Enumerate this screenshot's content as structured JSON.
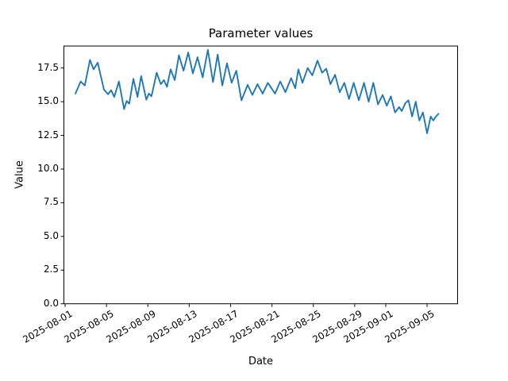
{
  "chart_data": {
    "type": "line",
    "title": "Parameter values",
    "xlabel": "Date",
    "ylabel": "Value",
    "grid": false,
    "legend": null,
    "line_color": "#1f77b4",
    "x_unit": "days since 2025-08-01",
    "xlim_days": [
      -0.12,
      37.95
    ],
    "ylim": [
      0,
      19.13
    ],
    "y_ticks": [
      {
        "value": 0,
        "label": "0.0"
      },
      {
        "value": 2.5,
        "label": "2.5"
      },
      {
        "value": 5,
        "label": "5.0"
      },
      {
        "value": 7.5,
        "label": "7.5"
      },
      {
        "value": 10,
        "label": "10.0"
      },
      {
        "value": 12.5,
        "label": "12.5"
      },
      {
        "value": 15,
        "label": "15.0"
      },
      {
        "value": 17.5,
        "label": "17.5"
      }
    ],
    "x_ticks": [
      {
        "day": 0,
        "label": "2025-08-01"
      },
      {
        "day": 4,
        "label": "2025-08-05"
      },
      {
        "day": 8,
        "label": "2025-08-09"
      },
      {
        "day": 12,
        "label": "2025-08-13"
      },
      {
        "day": 16,
        "label": "2025-08-17"
      },
      {
        "day": 20,
        "label": "2025-08-21"
      },
      {
        "day": 24,
        "label": "2025-08-25"
      },
      {
        "day": 28,
        "label": "2025-08-29"
      },
      {
        "day": 31,
        "label": "2025-09-01"
      },
      {
        "day": 35,
        "label": "2025-09-05"
      }
    ],
    "series": [
      {
        "name": "parameter-values",
        "points": [
          [
            1.0,
            15.6
          ],
          [
            1.5,
            16.5
          ],
          [
            1.9,
            16.2
          ],
          [
            2.4,
            18.1
          ],
          [
            2.75,
            17.4
          ],
          [
            3.15,
            17.9
          ],
          [
            3.75,
            15.9
          ],
          [
            4.15,
            15.55
          ],
          [
            4.45,
            15.85
          ],
          [
            4.75,
            15.35
          ],
          [
            5.2,
            16.5
          ],
          [
            5.7,
            14.45
          ],
          [
            5.95,
            15.05
          ],
          [
            6.2,
            14.85
          ],
          [
            6.6,
            16.7
          ],
          [
            7.0,
            15.35
          ],
          [
            7.35,
            16.9
          ],
          [
            7.85,
            15.15
          ],
          [
            8.1,
            15.6
          ],
          [
            8.35,
            15.4
          ],
          [
            8.85,
            17.15
          ],
          [
            9.25,
            16.3
          ],
          [
            9.55,
            16.6
          ],
          [
            9.85,
            16.1
          ],
          [
            10.2,
            17.4
          ],
          [
            10.6,
            16.6
          ],
          [
            11.0,
            18.45
          ],
          [
            11.45,
            17.3
          ],
          [
            11.9,
            18.65
          ],
          [
            12.35,
            17.1
          ],
          [
            12.8,
            18.3
          ],
          [
            13.3,
            16.8
          ],
          [
            13.8,
            18.85
          ],
          [
            14.3,
            16.45
          ],
          [
            14.75,
            18.5
          ],
          [
            15.2,
            16.2
          ],
          [
            15.65,
            17.85
          ],
          [
            16.1,
            16.4
          ],
          [
            16.55,
            17.3
          ],
          [
            17.05,
            15.1
          ],
          [
            17.65,
            16.25
          ],
          [
            18.1,
            15.5
          ],
          [
            18.6,
            16.3
          ],
          [
            19.1,
            15.6
          ],
          [
            19.6,
            16.4
          ],
          [
            20.3,
            15.6
          ],
          [
            20.8,
            16.5
          ],
          [
            21.3,
            15.7
          ],
          [
            21.85,
            16.75
          ],
          [
            22.25,
            16.0
          ],
          [
            22.55,
            17.4
          ],
          [
            22.95,
            16.4
          ],
          [
            23.45,
            17.5
          ],
          [
            23.9,
            16.95
          ],
          [
            24.4,
            18.05
          ],
          [
            24.85,
            17.15
          ],
          [
            25.25,
            17.45
          ],
          [
            25.65,
            16.3
          ],
          [
            26.1,
            17.0
          ],
          [
            26.55,
            15.7
          ],
          [
            27.0,
            16.4
          ],
          [
            27.45,
            15.2
          ],
          [
            27.9,
            16.4
          ],
          [
            28.4,
            15.1
          ],
          [
            28.9,
            16.4
          ],
          [
            29.35,
            15.0
          ],
          [
            29.8,
            16.4
          ],
          [
            30.25,
            14.8
          ],
          [
            30.7,
            15.5
          ],
          [
            31.1,
            14.7
          ],
          [
            31.5,
            15.4
          ],
          [
            31.9,
            14.2
          ],
          [
            32.3,
            14.6
          ],
          [
            32.55,
            14.3
          ],
          [
            32.9,
            14.9
          ],
          [
            33.2,
            15.1
          ],
          [
            33.55,
            13.9
          ],
          [
            33.9,
            15.0
          ],
          [
            34.25,
            13.6
          ],
          [
            34.6,
            14.2
          ],
          [
            35.0,
            12.65
          ],
          [
            35.35,
            13.9
          ],
          [
            35.6,
            13.6
          ],
          [
            35.8,
            13.85
          ],
          [
            36.1,
            14.1
          ]
        ]
      }
    ]
  }
}
